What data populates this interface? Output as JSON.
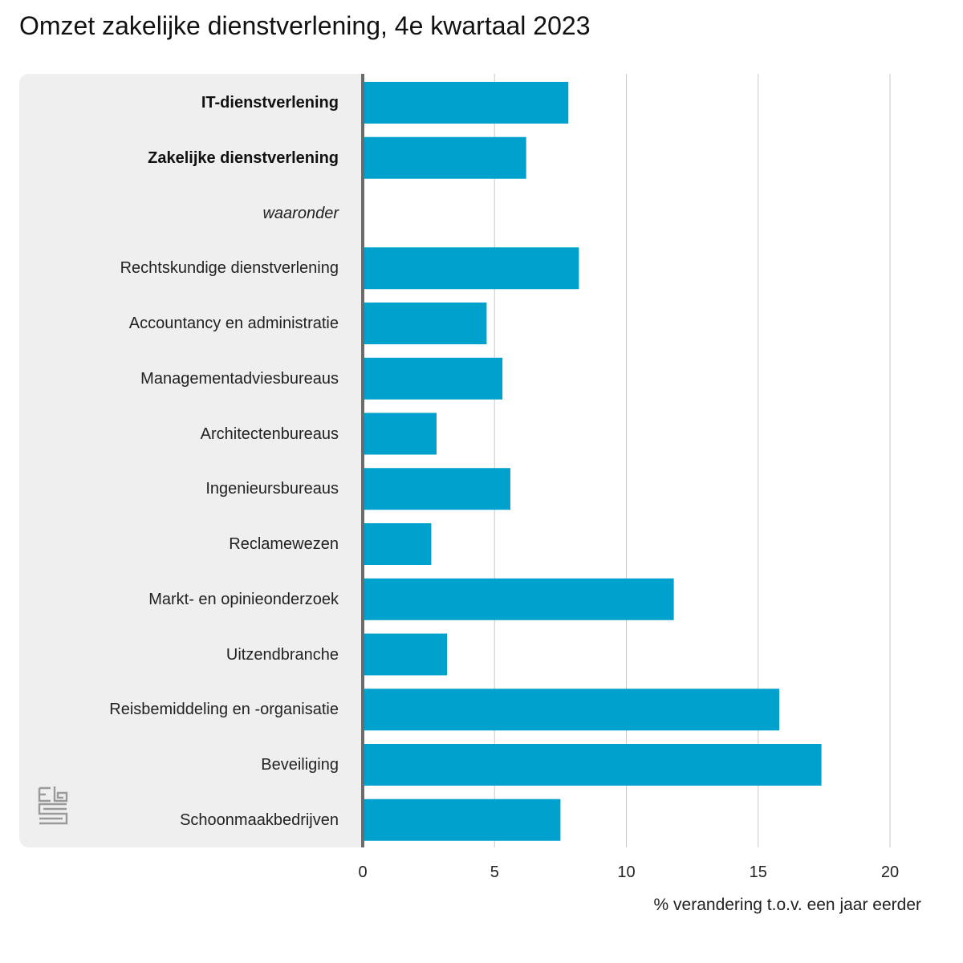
{
  "chart_data": {
    "type": "bar",
    "orientation": "horizontal",
    "title": "Omzet zakelijke dienstverlening, 4e kwartaal 2023",
    "xlabel": "% verandering t.o.v. een jaar eerder",
    "ylabel": "",
    "xlim": [
      0,
      20
    ],
    "xticks": [
      "0",
      "5",
      "10",
      "15",
      "20"
    ],
    "categories": [
      "IT-dienstverlening",
      "Zakelijke dienstverlening",
      "waaronder",
      "Rechtskundige dienstverlening",
      "Accountancy en administratie",
      "Managementadviesbureaus",
      "Architectenbureaus",
      "Ingenieursbureaus",
      "Reclamewezen",
      "Markt- en opinieonderzoek",
      "Uitzendbranche",
      "Reisbemiddeling en -organisatie",
      "Beveiliging",
      "Schoonmaakbedrijven"
    ],
    "category_styles": [
      "bold",
      "bold",
      "italic",
      "normal",
      "normal",
      "normal",
      "normal",
      "normal",
      "normal",
      "normal",
      "normal",
      "normal",
      "normal",
      "normal"
    ],
    "values": [
      7.8,
      6.2,
      null,
      8.2,
      4.7,
      5.3,
      2.8,
      5.6,
      2.6,
      11.8,
      3.2,
      15.8,
      17.4,
      7.5
    ],
    "bar_color": "#00a1cd",
    "grid": true
  },
  "colors": {
    "bar": "#00a1cd",
    "panel": "#efefef",
    "axis": "#6b6b6b",
    "grid": "#c8c8c8"
  },
  "logo_icon": "cbs-logo-icon"
}
